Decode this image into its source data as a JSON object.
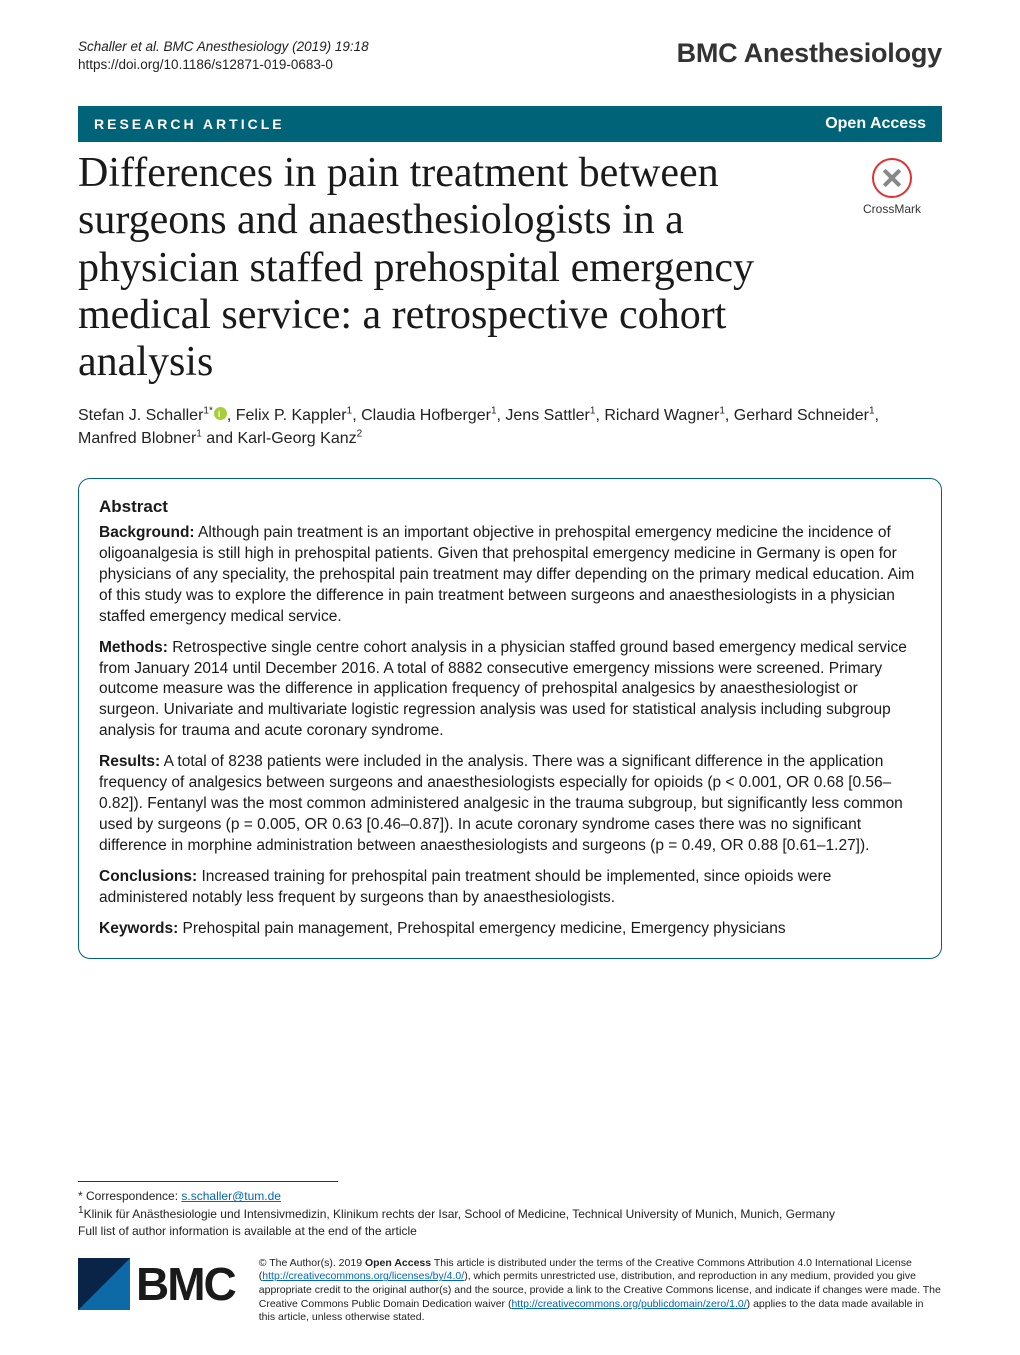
{
  "running_head": {
    "citation": "Schaller et al. BMC Anesthesiology        (2019) 19:18",
    "doi": "https://doi.org/10.1186/s12871-019-0683-0"
  },
  "brand": "BMC Anesthesiology",
  "bar": {
    "left": "RESEARCH ARTICLE",
    "right": "Open Access"
  },
  "crossmark_label": "CrossMark",
  "title": "Differences in pain treatment between surgeons and anaesthesiologists in a physician staffed prehospital emergency medical service: a retrospective cohort analysis",
  "authors_line_html": "Stefan J. Schaller<sup>1*</sup><span class='orcid' data-name='orcid-icon' data-interactable='false'></span>, Felix P. Kappler<sup>1</sup>, Claudia Hofberger<sup>1</sup>, Jens Sattler<sup>1</sup>, Richard Wagner<sup>1</sup>, Gerhard Schneider<sup>1</sup>, Manfred Blobner<sup>1</sup> and Karl-Georg Kanz<sup>2</sup>",
  "abstract": {
    "heading": "Abstract",
    "background_label": "Background:",
    "background": " Although pain treatment is an important objective in prehospital emergency medicine the incidence of oligoanalgesia is still high in prehospital patients. Given that prehospital emergency medicine in Germany is open for physicians of any speciality, the prehospital pain treatment may differ depending on the primary medical education. Aim of this study was to explore the difference in pain treatment between surgeons and anaesthesiologists in a physician staffed emergency medical service.",
    "methods_label": "Methods:",
    "methods": " Retrospective single centre cohort analysis in a physician staffed ground based emergency medical service from January 2014 until December 2016. A total of 8882 consecutive emergency missions were screened. Primary outcome measure was the difference in application frequency of prehospital analgesics by anaesthesiologist or surgeon. Univariate and multivariate logistic regression analysis was used for statistical analysis including subgroup analysis for trauma and acute coronary syndrome.",
    "results_label": "Results:",
    "results": " A total of 8238 patients were included in the analysis. There was a significant difference in the application frequency of analgesics between surgeons and anaesthesiologists especially for opioids (p < 0.001, OR 0.68 [0.56–0.82]). Fentanyl was the most common administered analgesic in the trauma subgroup, but significantly less common used by surgeons (p = 0.005, OR 0.63 [0.46–0.87]). In acute coronary syndrome cases there was no significant difference in morphine administration between anaesthesiologists and surgeons (p = 0.49, OR 0.88 [0.61–1.27]).",
    "conclusions_label": "Conclusions:",
    "conclusions": " Increased training for prehospital pain treatment should be implemented, since opioids were administered notably less frequent by surgeons than by anaesthesiologists.",
    "keywords_label": "Keywords:",
    "keywords": " Prehospital pain management, Prehospital emergency medicine, Emergency physicians"
  },
  "footnote": {
    "correspondence_label": "* Correspondence: ",
    "correspondence_email": "s.schaller@tum.de",
    "affiliation1": "Klinik für Anästhesiologie und Intensivmedizin, Klinikum rechts der Isar, School of Medicine, Technical University of Munich, Munich, Germany",
    "affiliation_sup": "1",
    "full_list": "Full list of author information is available at the end of the article"
  },
  "license": {
    "text_pre": "© The Author(s). 2019 ",
    "open_access": "Open Access",
    "text_mid": " This article is distributed under the terms of the Creative Commons Attribution 4.0 International License (",
    "cc_link": "http://creativecommons.org/licenses/by/4.0/",
    "text_post1": "), which permits unrestricted use, distribution, and reproduction in any medium, provided you give appropriate credit to the original author(s) and the source, provide a link to the Creative Commons license, and indicate if changes were made. The Creative Commons Public Domain Dedication waiver (",
    "pd_link": "http://creativecommons.org/publicdomain/zero/1.0/",
    "text_post2": ") applies to the data made available in this article, unless otherwise stated."
  },
  "bmc_logo_text": "BMC",
  "colors": {
    "bar_bg": "#006378",
    "link": "#0066bb",
    "orcid": "#a6ce39"
  }
}
